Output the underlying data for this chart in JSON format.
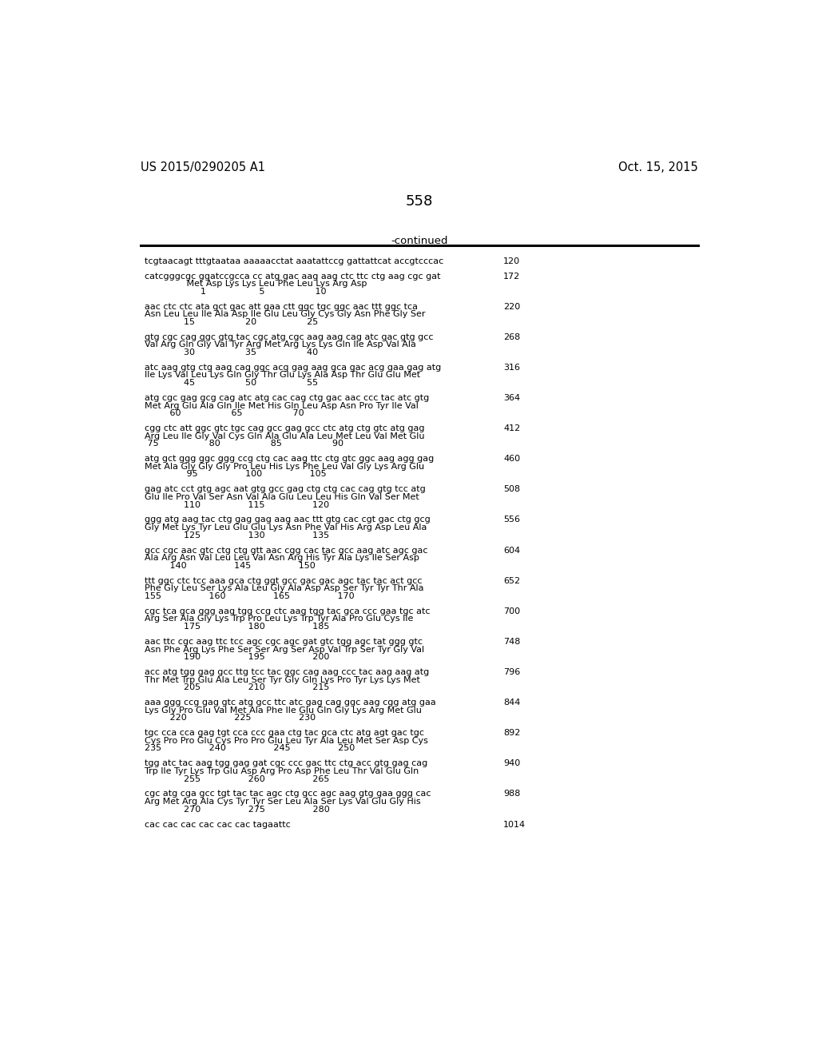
{
  "header_left": "US 2015/0290205 A1",
  "header_right": "Oct. 15, 2015",
  "page_number": "558",
  "continued_text": "-continued",
  "background_color": "#ffffff",
  "content": [
    {
      "dna": "tcgtaacagt tttgtaataa aaaaacctat aaatattccg gattattcat accgtcccac",
      "num": "120",
      "aa": null,
      "pos": null
    },
    {
      "dna": "catcgggcgc ggatccgcca cc atg gac aag aag ctc ttc ctg aag cgc gat",
      "num": "172",
      "aa": "               Met Asp Lys Lys Leu Phe Leu Lys Arg Asp",
      "pos": "                    1                   5                  10"
    },
    {
      "dna": "aac ctc ctc ata gct gac att gaa ctt ggc tgc ggc aac ttt ggc tca",
      "num": "220",
      "aa": "Asn Leu Leu Ile Ala Asp Ile Glu Leu Gly Cys Gly Asn Phe Gly Ser",
      "pos": "              15                  20                  25"
    },
    {
      "dna": "gtg cgc cag ggc gtg tac cgc atg cgc aag aag cag atc gac gtg gcc",
      "num": "268",
      "aa": "Val Arg Gln Gly Val Tyr Arg Met Arg Lys Lys Gln Ile Asp Val Ala",
      "pos": "              30                  35                  40"
    },
    {
      "dna": "atc aag gtg ctg aag cag ggc acg gag aag gca gac acg gaa gag atg",
      "num": "316",
      "aa": "Ile Lys Val Leu Lys Gln Gly Thr Glu Lys Ala Asp Thr Glu Glu Met",
      "pos": "              45                  50                  55"
    },
    {
      "dna": "atg cgc gag gcg cag atc atg cac cag ctg gac aac ccc tac atc gtg",
      "num": "364",
      "aa": "Met Arg Glu Ala Gln Ile Met His Gln Leu Asp Asn Pro Tyr Ile Val",
      "pos": "         60                  65                  70"
    },
    {
      "dna": "cgg ctc att ggc gtc tgc cag gcc gag gcc ctc atg ctg gtc atg gag",
      "num": "412",
      "aa": "Arg Leu Ile Gly Val Cys Gln Ala Glu Ala Leu Met Leu Val Met Glu",
      "pos": " 75                  80                  85                  90"
    },
    {
      "dna": "atg gct ggg ggc ggg ccg ctg cac aag ttc ctg gtc ggc aag agg gag",
      "num": "460",
      "aa": "Met Ala Gly Gly Gly Pro Leu His Lys Phe Leu Val Gly Lys Arg Glu",
      "pos": "               95                 100                 105"
    },
    {
      "dna": "gag atc cct gtg agc aat gtg gcc gag ctg ctg cac cag gtg tcc atg",
      "num": "508",
      "aa": "Glu Ile Pro Val Ser Asn Val Ala Glu Leu Leu His Gln Val Ser Met",
      "pos": "              110                 115                 120"
    },
    {
      "dna": "ggg atg aag tac ctg gag gag aag aac ttt gtg cac cgt gac ctg gcg",
      "num": "556",
      "aa": "Gly Met Lys Tyr Leu Glu Glu Lys Asn Phe Val His Arg Asp Leu Ala",
      "pos": "              125                 130                 135"
    },
    {
      "dna": "gcc cgc aac gtc ctg ctg gtt aac cgg cac tac gcc aag atc agc gac",
      "num": "604",
      "aa": "Ala Arg Asn Val Leu Leu Val Asn Arg His Tyr Ala Lys Ile Ser Asp",
      "pos": "         140                 145                 150"
    },
    {
      "dna": "ttt ggc ctc tcc aaa gca ctg ggt gcc gac gac agc tac tac act gcc",
      "num": "652",
      "aa": "Phe Gly Leu Ser Lys Ala Leu Gly Ala Asp Asp Ser Tyr Tyr Thr Ala",
      "pos": "155                 160                 165                 170"
    },
    {
      "dna": "cgc tca gca ggg aag tgg ccg ctc aag tgg tac gca ccc gaa tgc atc",
      "num": "700",
      "aa": "Arg Ser Ala Gly Lys Trp Pro Leu Lys Trp Tyr Ala Pro Glu Cys Ile",
      "pos": "              175                 180                 185"
    },
    {
      "dna": "aac ttc cgc aag ttc tcc agc cgc agc gat gtc tgg agc tat ggg gtc",
      "num": "748",
      "aa": "Asn Phe Arg Lys Phe Ser Ser Arg Ser Asp Val Trp Ser Tyr Gly Val",
      "pos": "              190                 195                 200"
    },
    {
      "dna": "acc atg tgg gag gcc ttg tcc tac ggc cag aag ccc tac aag aag atg",
      "num": "796",
      "aa": "Thr Met Trp Glu Ala Leu Ser Tyr Gly Gln Lys Pro Tyr Lys Lys Met",
      "pos": "              205                 210                 215"
    },
    {
      "dna": "aaa ggg ccg gag gtc atg gcc ttc atc gag cag ggc aag cgg atg gaa",
      "num": "844",
      "aa": "Lys Gly Pro Glu Val Met Ala Phe Ile Glu Gln Gly Lys Arg Met Glu",
      "pos": "         220                 225                 230"
    },
    {
      "dna": "tgc cca cca gag tgt cca ccc gaa ctg tac gca ctc atg agt gac tgc",
      "num": "892",
      "aa": "Cys Pro Pro Glu Cys Pro Pro Glu Leu Tyr Ala Leu Met Ser Asp Cys",
      "pos": "235                 240                 245                 250"
    },
    {
      "dna": "tgg atc tac aag tgg gag gat cgc ccc gac ttc ctg acc gtg gag cag",
      "num": "940",
      "aa": "Trp Ile Tyr Lys Trp Glu Asp Arg Pro Asp Phe Leu Thr Val Glu Gln",
      "pos": "              255                 260                 265"
    },
    {
      "dna": "cgc atg cga gcc tgt tac tac agc ctg gcc agc aag gtg gaa ggg cac",
      "num": "988",
      "aa": "Arg Met Arg Ala Cys Tyr Tyr Ser Leu Ala Ser Lys Val Glu Gly His",
      "pos": "              270                 275                 280"
    },
    {
      "dna": "cac cac cac cac cac cac tagaattc",
      "num": "1014",
      "aa": null,
      "pos": null
    }
  ]
}
